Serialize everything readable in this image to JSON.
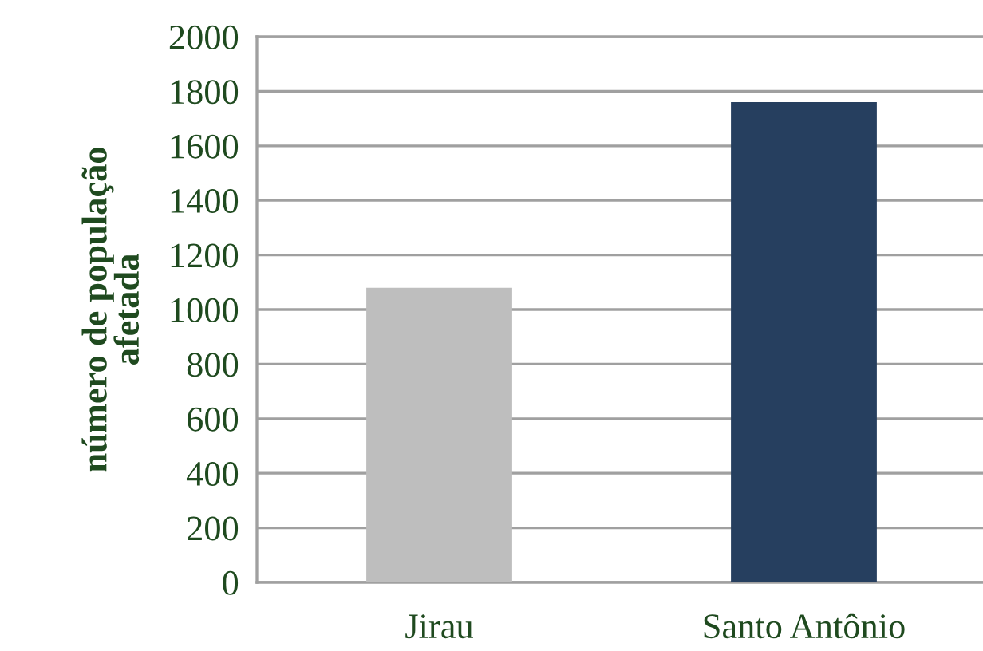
{
  "chart_data": {
    "type": "bar",
    "ylabel": "número de população\nafetada",
    "categories": [
      "Jirau",
      "Santo Antônio"
    ],
    "values": [
      1080,
      1760
    ],
    "colors": [
      "#bebebe",
      "#263f5f"
    ],
    "ylim": [
      0,
      2000
    ],
    "yticks": [
      0,
      200,
      400,
      600,
      800,
      1000,
      1200,
      1400,
      1600,
      1800,
      2000
    ],
    "grid": "y",
    "legend": false
  }
}
